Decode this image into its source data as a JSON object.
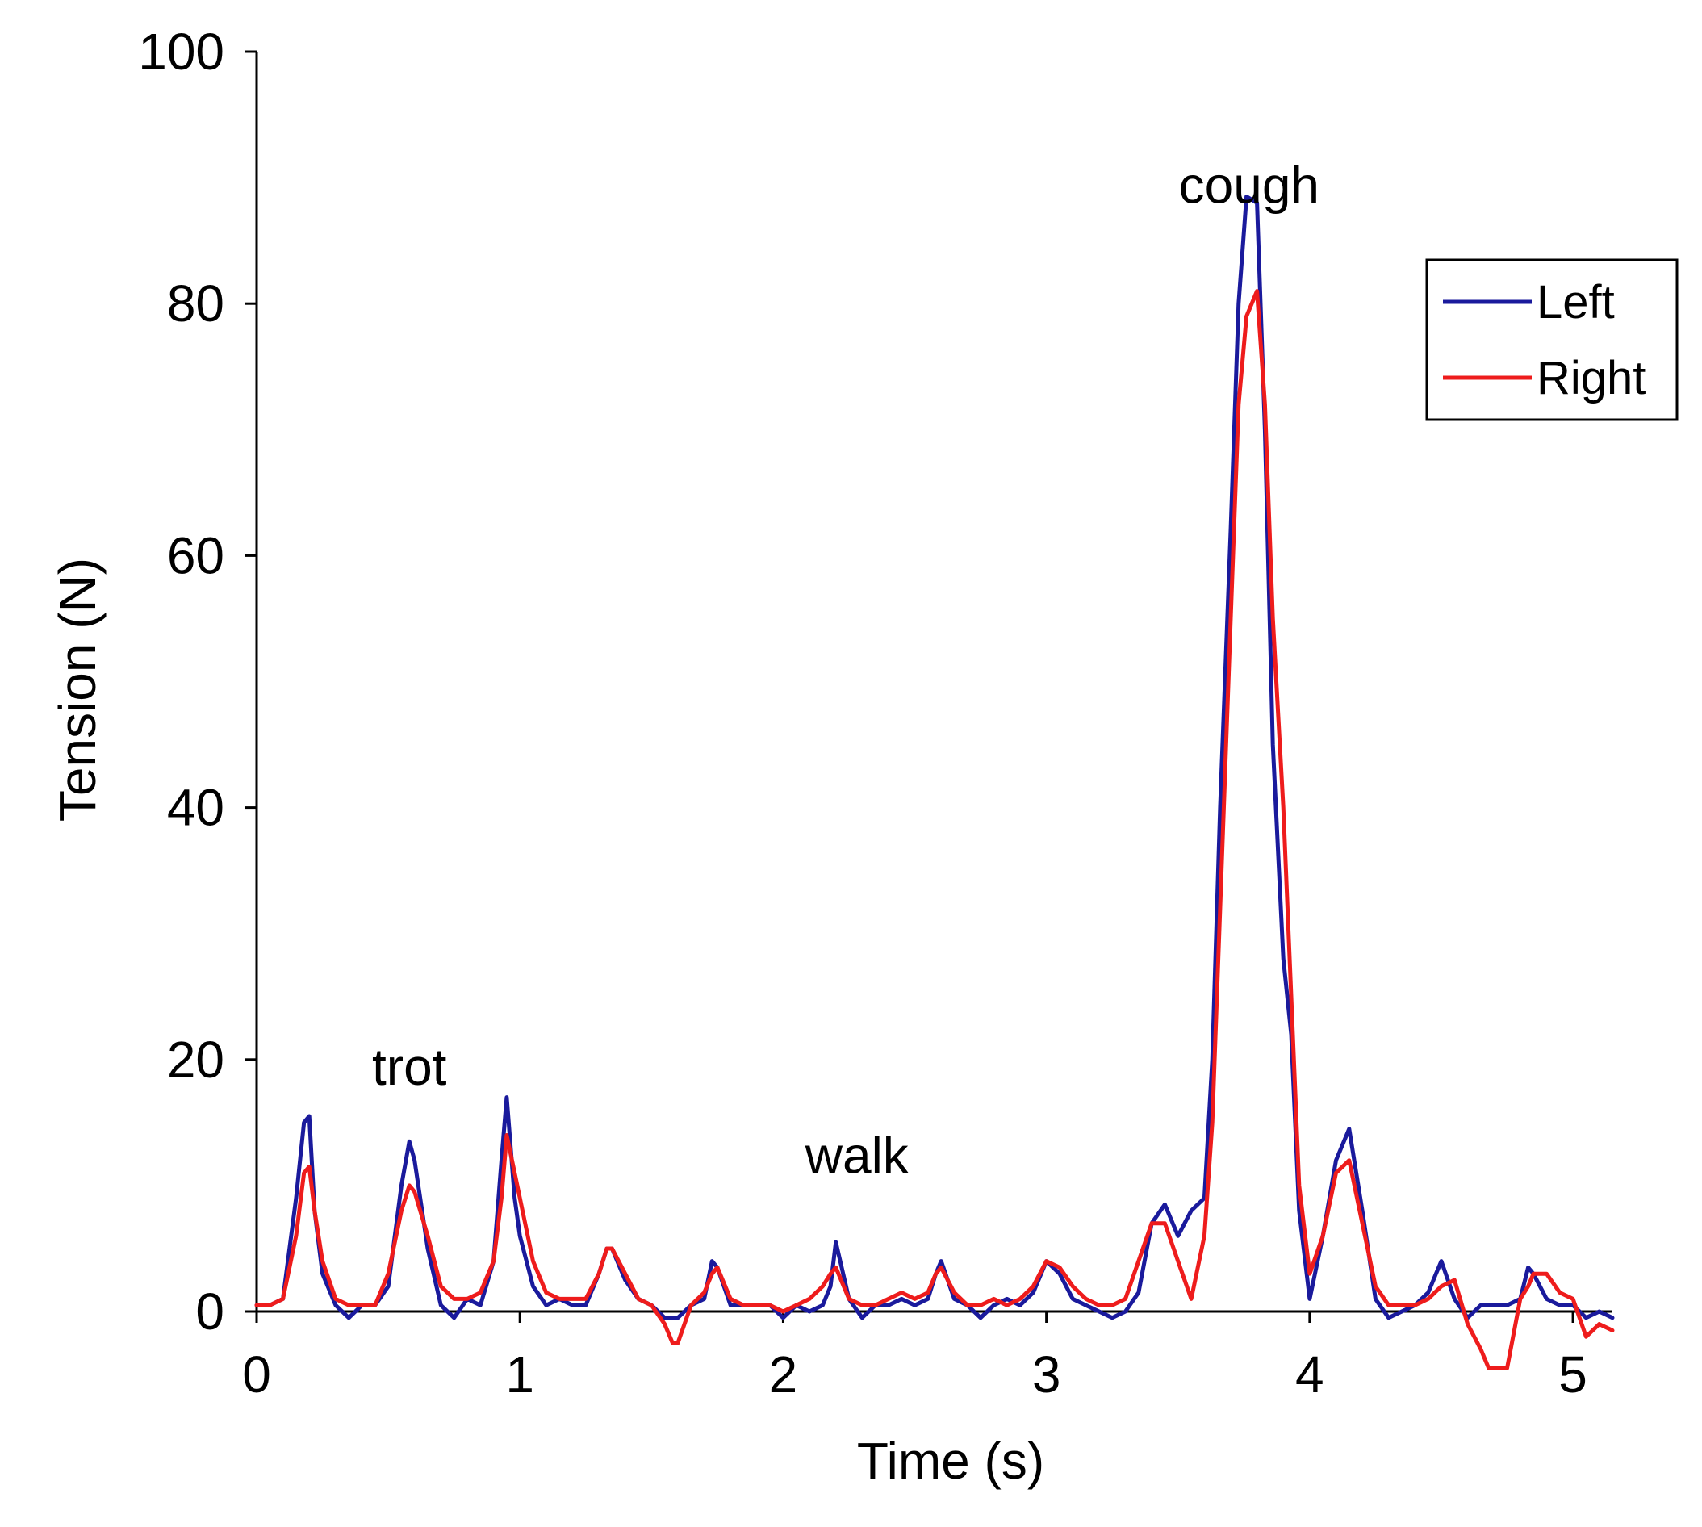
{
  "chart_data": {
    "type": "line",
    "title": "",
    "xlabel": "Time (s)",
    "ylabel": "Tension (N)",
    "xlim": [
      0,
      5.15
    ],
    "ylim": [
      0,
      100
    ],
    "xticks": [
      0,
      1,
      2,
      3,
      4,
      5
    ],
    "yticks": [
      0,
      20,
      40,
      60,
      80,
      100
    ],
    "grid": false,
    "legend_position": "top-right",
    "annotations": [
      {
        "text": "trot",
        "x": 0.58,
        "y": 18
      },
      {
        "text": "walk",
        "x": 2.28,
        "y": 11
      },
      {
        "text": "cough",
        "x": 3.77,
        "y": 88
      }
    ],
    "series": [
      {
        "name": "Left",
        "color": "#1a1a9c",
        "x": [
          0.0,
          0.05,
          0.1,
          0.15,
          0.18,
          0.2,
          0.22,
          0.25,
          0.3,
          0.35,
          0.4,
          0.45,
          0.5,
          0.55,
          0.58,
          0.6,
          0.65,
          0.7,
          0.75,
          0.8,
          0.85,
          0.9,
          0.93,
          0.95,
          0.98,
          1.0,
          1.05,
          1.1,
          1.15,
          1.2,
          1.25,
          1.3,
          1.33,
          1.35,
          1.4,
          1.45,
          1.5,
          1.55,
          1.6,
          1.65,
          1.7,
          1.73,
          1.75,
          1.8,
          1.85,
          1.9,
          1.95,
          2.0,
          2.05,
          2.1,
          2.15,
          2.18,
          2.2,
          2.25,
          2.3,
          2.35,
          2.4,
          2.45,
          2.5,
          2.55,
          2.58,
          2.6,
          2.65,
          2.7,
          2.75,
          2.8,
          2.85,
          2.9,
          2.95,
          3.0,
          3.05,
          3.1,
          3.15,
          3.2,
          3.25,
          3.3,
          3.35,
          3.4,
          3.45,
          3.5,
          3.55,
          3.6,
          3.63,
          3.66,
          3.7,
          3.73,
          3.76,
          3.8,
          3.83,
          3.86,
          3.9,
          3.93,
          3.96,
          4.0,
          4.05,
          4.1,
          4.15,
          4.2,
          4.25,
          4.3,
          4.35,
          4.4,
          4.45,
          4.48,
          4.5,
          4.55,
          4.6,
          4.65,
          4.7,
          4.75,
          4.8,
          4.83,
          4.85,
          4.9,
          4.95,
          5.0,
          5.05,
          5.1,
          5.15
        ],
        "y": [
          0.5,
          0.5,
          1,
          9,
          15,
          15.5,
          8,
          3,
          0.5,
          -0.5,
          0.5,
          0.5,
          2,
          10,
          13.5,
          12,
          5,
          0.5,
          -0.5,
          1,
          0.5,
          4,
          12,
          17,
          9,
          6,
          2,
          0.5,
          1,
          0.5,
          0.5,
          3,
          5,
          5,
          2.5,
          1,
          0.5,
          -0.5,
          -0.5,
          0.5,
          1,
          4,
          3.5,
          0.5,
          0.5,
          0.5,
          0.5,
          -0.5,
          0.5,
          0,
          0.5,
          2,
          5.5,
          1,
          -0.5,
          0.5,
          0.5,
          1,
          0.5,
          1,
          3,
          4,
          1,
          0.5,
          -0.5,
          0.5,
          1,
          0.5,
          1.5,
          4,
          3,
          1,
          0.5,
          0,
          -0.5,
          0,
          1.5,
          7,
          8.5,
          6,
          8,
          9,
          20,
          40,
          62,
          80,
          88.5,
          88,
          70,
          45,
          28,
          22,
          8,
          1,
          6,
          12,
          14.5,
          8,
          1,
          -0.5,
          0,
          0.5,
          1.5,
          3,
          4,
          1,
          -0.5,
          0.5,
          0.5,
          0.5,
          1,
          3.5,
          3,
          1,
          0.5,
          0.5,
          -0.5,
          0,
          -0.5
        ]
      },
      {
        "name": "Right",
        "color": "#ee1c1c",
        "x": [
          0.0,
          0.05,
          0.1,
          0.15,
          0.18,
          0.2,
          0.22,
          0.25,
          0.3,
          0.35,
          0.4,
          0.45,
          0.5,
          0.55,
          0.58,
          0.6,
          0.65,
          0.7,
          0.75,
          0.8,
          0.85,
          0.9,
          0.93,
          0.95,
          0.98,
          1.0,
          1.05,
          1.1,
          1.15,
          1.2,
          1.25,
          1.3,
          1.33,
          1.35,
          1.4,
          1.45,
          1.5,
          1.55,
          1.58,
          1.6,
          1.65,
          1.7,
          1.73,
          1.75,
          1.8,
          1.85,
          1.9,
          1.95,
          2.0,
          2.05,
          2.1,
          2.15,
          2.18,
          2.2,
          2.25,
          2.3,
          2.35,
          2.4,
          2.45,
          2.5,
          2.55,
          2.58,
          2.6,
          2.65,
          2.7,
          2.75,
          2.8,
          2.85,
          2.9,
          2.95,
          3.0,
          3.05,
          3.1,
          3.15,
          3.2,
          3.25,
          3.3,
          3.35,
          3.4,
          3.45,
          3.5,
          3.55,
          3.6,
          3.63,
          3.66,
          3.7,
          3.73,
          3.76,
          3.8,
          3.83,
          3.86,
          3.9,
          3.93,
          3.96,
          4.0,
          4.05,
          4.1,
          4.15,
          4.2,
          4.25,
          4.3,
          4.35,
          4.4,
          4.45,
          4.5,
          4.55,
          4.6,
          4.65,
          4.68,
          4.7,
          4.75,
          4.8,
          4.83,
          4.85,
          4.9,
          4.95,
          5.0,
          5.05,
          5.1,
          5.15
        ],
        "y": [
          0.5,
          0.5,
          1,
          6,
          11,
          11.5,
          8,
          4,
          1,
          0.5,
          0.5,
          0.5,
          3,
          8,
          10,
          9.5,
          6,
          2,
          1,
          1,
          1.5,
          4,
          9,
          14,
          11,
          9,
          4,
          1.5,
          1,
          1,
          1,
          3,
          5,
          5,
          3,
          1,
          0.5,
          -1,
          -2.5,
          -2.5,
          0.5,
          1.5,
          3,
          3.5,
          1,
          0.5,
          0.5,
          0.5,
          0,
          0.5,
          1,
          2,
          3,
          3.5,
          1,
          0.5,
          0.5,
          1,
          1.5,
          1,
          1.5,
          3,
          3.5,
          1.5,
          0.5,
          0.5,
          1,
          0.5,
          1,
          2,
          4,
          3.5,
          2,
          1,
          0.5,
          0.5,
          1,
          4,
          7,
          7,
          4,
          1,
          6,
          15,
          32,
          55,
          72,
          79,
          81,
          72,
          55,
          40,
          25,
          10,
          3,
          6,
          11,
          12,
          7,
          2,
          0.5,
          0.5,
          0.5,
          1,
          2,
          2.5,
          -1,
          -3,
          -4.5,
          -4.5,
          -4.5,
          1,
          2,
          3,
          3,
          1.5,
          1,
          -2,
          -1,
          -1.5
        ]
      }
    ]
  }
}
